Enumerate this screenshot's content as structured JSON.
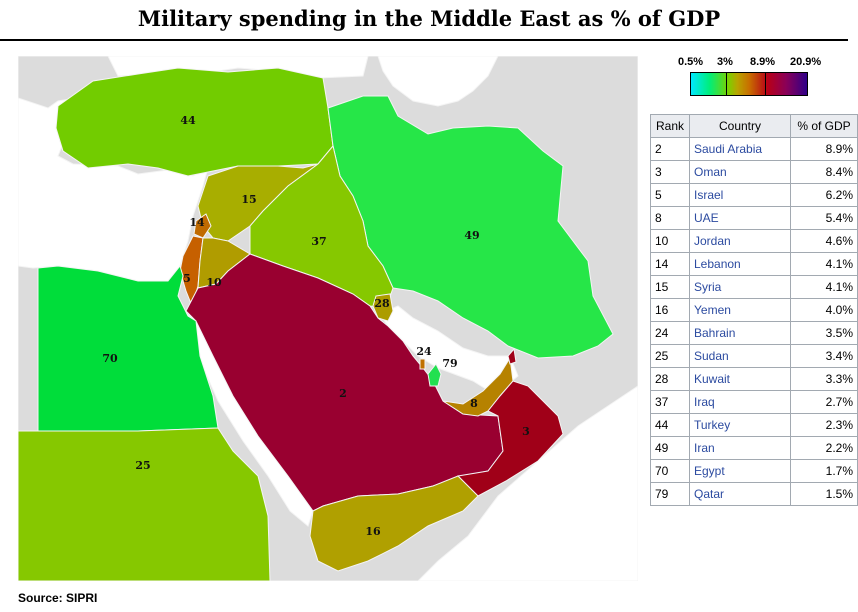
{
  "title": "Military spending in the Middle East as % of GDP",
  "source": "Source: SIPRI",
  "legend": {
    "ticks": [
      "0.5%",
      "3%",
      "8.9%",
      "20.9%"
    ],
    "colors": [
      "#00e8ff",
      "#00ee7a",
      "#7ad000",
      "#b8a400",
      "#c87000",
      "#b80018",
      "#8a0058",
      "#300088"
    ]
  },
  "table": {
    "headers": [
      "Rank",
      "Country",
      "% of GDP"
    ],
    "rows": [
      {
        "rank": "2",
        "country": "Saudi Arabia",
        "pct": "8.9%"
      },
      {
        "rank": "3",
        "country": "Oman",
        "pct": "8.4%"
      },
      {
        "rank": "5",
        "country": "Israel",
        "pct": "6.2%"
      },
      {
        "rank": "8",
        "country": "UAE",
        "pct": "5.4%"
      },
      {
        "rank": "10",
        "country": "Jordan",
        "pct": "4.6%"
      },
      {
        "rank": "14",
        "country": "Lebanon",
        "pct": "4.1%"
      },
      {
        "rank": "15",
        "country": "Syria",
        "pct": "4.1%"
      },
      {
        "rank": "16",
        "country": "Yemen",
        "pct": "4.0%"
      },
      {
        "rank": "24",
        "country": "Bahrain",
        "pct": "3.5%"
      },
      {
        "rank": "25",
        "country": "Sudan",
        "pct": "3.4%"
      },
      {
        "rank": "28",
        "country": "Kuwait",
        "pct": "3.3%"
      },
      {
        "rank": "37",
        "country": "Iraq",
        "pct": "2.7%"
      },
      {
        "rank": "44",
        "country": "Turkey",
        "pct": "2.3%"
      },
      {
        "rank": "49",
        "country": "Iran",
        "pct": "2.2%"
      },
      {
        "rank": "70",
        "country": "Egypt",
        "pct": "1.7%"
      },
      {
        "rank": "79",
        "country": "Qatar",
        "pct": "1.5%"
      }
    ]
  },
  "map": {
    "colors": {
      "background": "#dcdcdc",
      "sea": "#ffffff",
      "turkey": "#72cc00",
      "iran": "#26e648",
      "egypt": "#00dd3a",
      "sudan": "#86c800",
      "iraq": "#86c800",
      "syria": "#a8ae00",
      "jordan": "#b09c00",
      "lebanon": "#c06a00",
      "israel": "#c66000",
      "saudi": "#990030",
      "oman": "#a00018",
      "yemen": "#b0a000",
      "uae": "#b68200",
      "kuwait": "#ac9c00",
      "qatar": "#22e050",
      "bahrain": "#c07000"
    },
    "labels": {
      "turkey": "44",
      "iran": "49",
      "egypt": "70",
      "sudan": "25",
      "iraq": "37",
      "syria": "15",
      "jordan": "10",
      "lebanon": "14",
      "israel": "5",
      "saudi": "2",
      "oman": "3",
      "yemen": "16",
      "uae": "8",
      "kuwait": "28",
      "qatar": "79",
      "bahrain": "24"
    }
  }
}
